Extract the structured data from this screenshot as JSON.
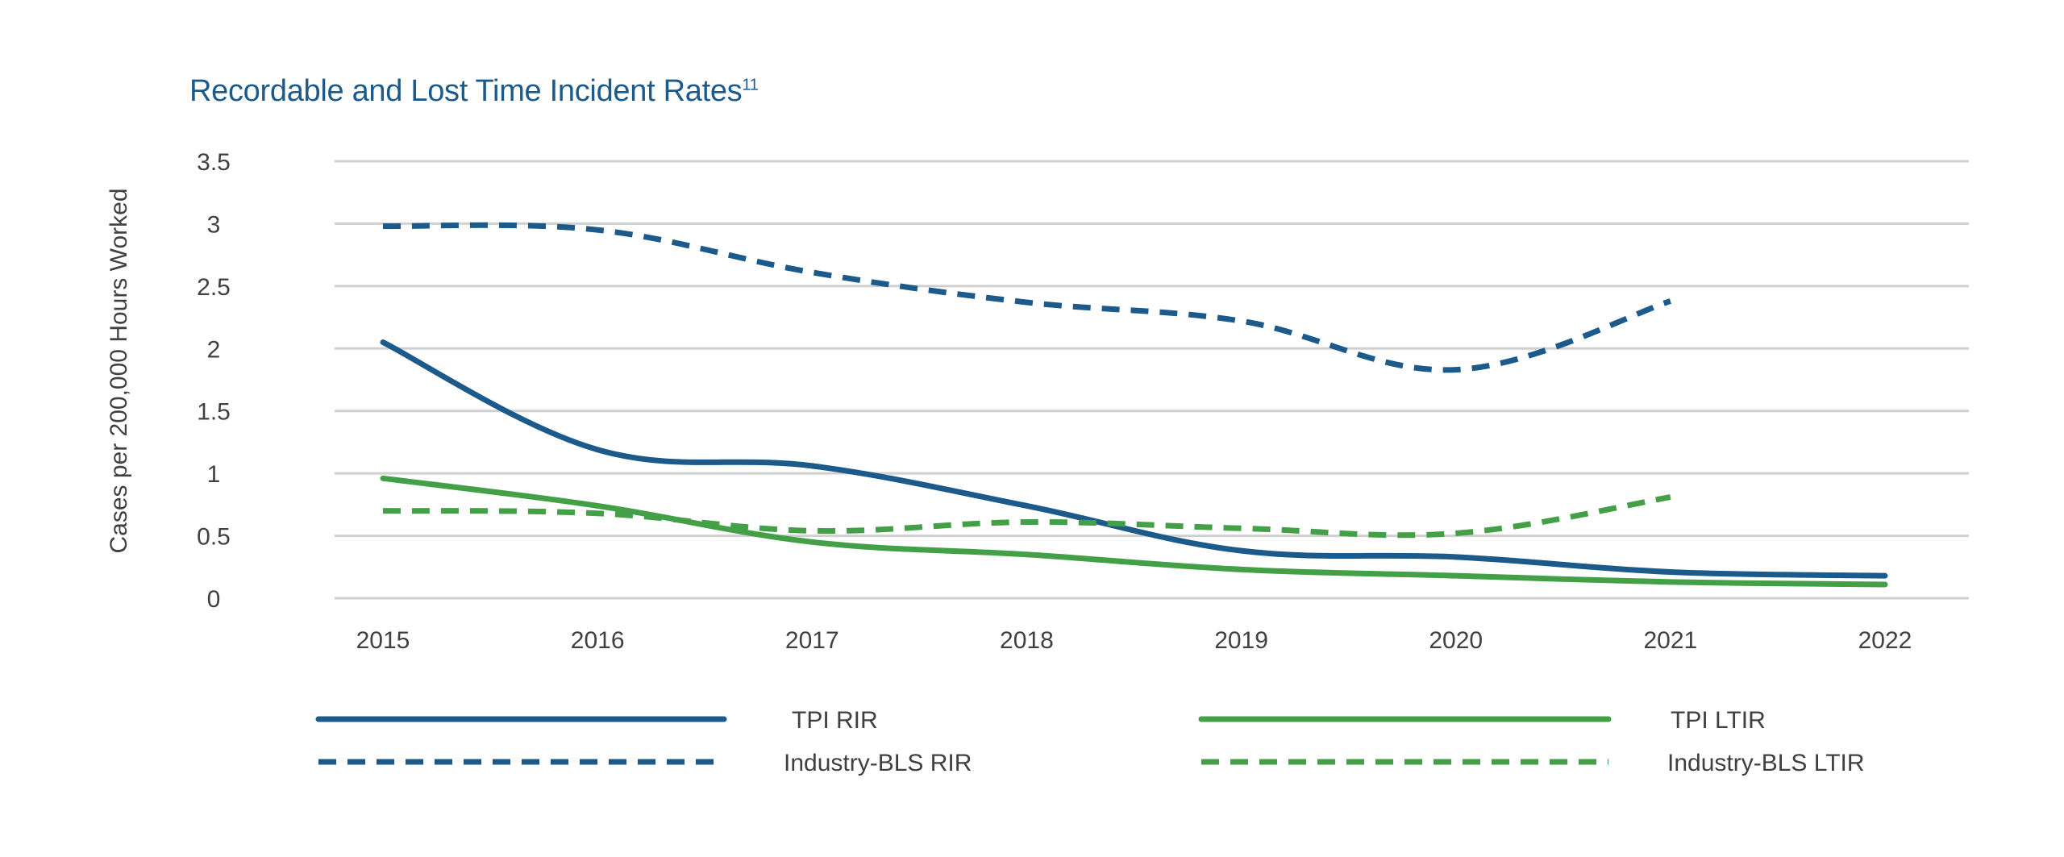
{
  "chart_data": {
    "type": "line",
    "title": "Recordable and Lost Time Incident Rates",
    "title_superscript": "11",
    "ylabel": "Cases per 200,000 Hours Worked",
    "xlabel": "",
    "x": [
      "2015",
      "2016",
      "2017",
      "2018",
      "2019",
      "2020",
      "2021",
      "2022"
    ],
    "yticks": [
      "0",
      "0.5",
      "1",
      "1.5",
      "2",
      "2.5",
      "3",
      "3.5"
    ],
    "ylim": [
      0,
      3.5
    ],
    "grid": true,
    "legend_position": "bottom",
    "series": [
      {
        "name": "TPI RIR",
        "style": "solid",
        "color": "#1b5a8b",
        "values": [
          2.05,
          1.19,
          1.06,
          0.74,
          0.38,
          0.33,
          0.21,
          0.18
        ]
      },
      {
        "name": "TPI LTIR",
        "style": "solid",
        "color": "#43a047",
        "values": [
          0.96,
          0.74,
          0.45,
          0.35,
          0.23,
          0.18,
          0.13,
          0.11
        ]
      },
      {
        "name": "Industry-BLS RIR",
        "style": "dashed",
        "color": "#1b5a8b",
        "values": [
          2.98,
          2.95,
          2.61,
          2.37,
          2.22,
          1.83,
          2.38,
          null
        ]
      },
      {
        "name": "Industry-BLS LTIR",
        "style": "dashed",
        "color": "#43a047",
        "values": [
          0.7,
          0.68,
          0.54,
          0.61,
          0.56,
          0.52,
          0.81,
          null
        ]
      }
    ]
  }
}
